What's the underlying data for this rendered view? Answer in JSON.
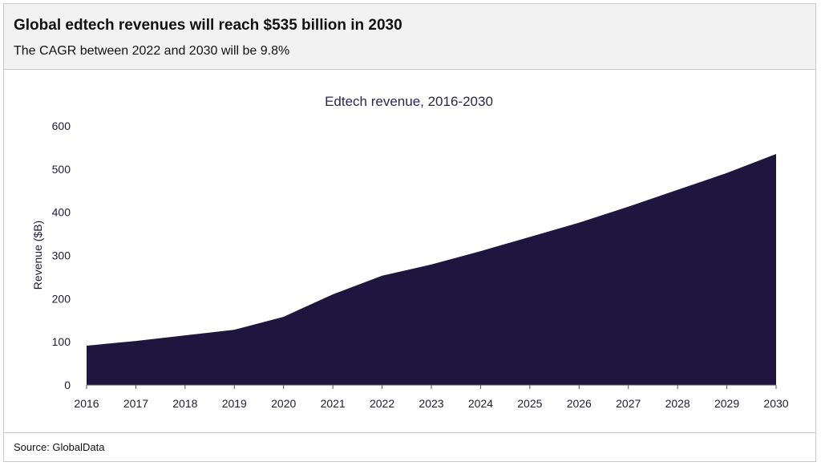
{
  "header": {
    "title": "Global edtech revenues will reach $535 billion in 2030",
    "subtitle": "The CAGR between 2022 and 2030 will be 9.8%"
  },
  "footer": {
    "source": "Source: GlobalData"
  },
  "colors": {
    "area": "#1f1640",
    "axis": "#555555"
  },
  "chart_data": {
    "type": "area",
    "title": "Edtech revenue, 2016-2030",
    "xlabel": "",
    "ylabel": "Revenue ($B)",
    "ylim": [
      0,
      600
    ],
    "yticks": [
      0,
      100,
      200,
      300,
      400,
      500,
      600
    ],
    "x": [
      "2016",
      "2017",
      "2018",
      "2019",
      "2020",
      "2021",
      "2022",
      "2023",
      "2024",
      "2025",
      "2026",
      "2027",
      "2028",
      "2029",
      "2030"
    ],
    "series": [
      {
        "values": [
          91,
          102,
          115,
          128,
          158,
          210,
          253,
          279,
          310,
          343,
          376,
          413,
          452,
          491,
          535
        ]
      }
    ],
    "grid": false,
    "legend": "none"
  }
}
